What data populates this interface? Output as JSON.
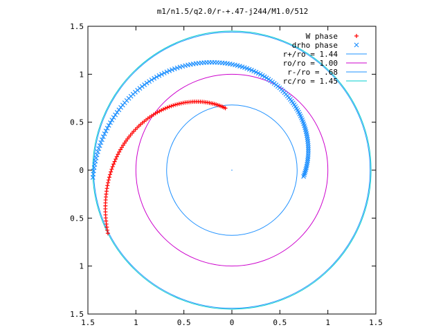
{
  "chart_data": {
    "type": "scatter",
    "title": "m1/n1.5/q2.0/r-+.47-j244/M1.0/512",
    "xlim": [
      -1.5,
      1.5
    ],
    "ylim": [
      -1.5,
      1.5
    ],
    "x_ticks": [
      -1.5,
      -1,
      -0.5,
      0,
      0.5,
      1,
      1.5
    ],
    "y_ticks": [
      -1.5,
      -1,
      -0.5,
      0,
      0.5,
      1,
      1.5
    ],
    "x_tick_labels": [
      "1.5",
      "1",
      "0.5",
      "0",
      "0.5",
      "1",
      "1.5"
    ],
    "y_tick_labels": [
      "1.5",
      "1",
      "0.5",
      "0",
      "0.5",
      "1",
      "1.5"
    ],
    "grid": false,
    "legend_position": "top-right",
    "colors": {
      "w_phase": "#ff0000",
      "drho_phase": "#1e90ff",
      "r_plus": "#1e90ff",
      "ro": "#cc00cc",
      "r_minus": "#1e90ff",
      "rc": "#00cccc"
    },
    "series": [
      {
        "name": "W phase",
        "kind": "points",
        "marker": "plus",
        "color": "#ff0000",
        "spiral": {
          "r_start": 0.65,
          "r_end": 1.45,
          "theta_start_deg": 96,
          "theta_end_deg": 207,
          "count": 90
        }
      },
      {
        "name": "drho phase",
        "kind": "points",
        "marker": "cross",
        "color": "#1e90ff",
        "spiral": {
          "r_start": 0.75,
          "r_end": 1.45,
          "theta_start_deg": -5,
          "theta_end_deg": 183,
          "count": 140
        }
      },
      {
        "name": "r+/ro = 1.44",
        "kind": "circle",
        "radius": 1.44,
        "color": "#1e90ff"
      },
      {
        "name": "ro/ro = 1.00",
        "kind": "circle",
        "radius": 1.0,
        "color": "#cc00cc"
      },
      {
        "name": "r-/ro = .68",
        "kind": "circle",
        "radius": 0.68,
        "color": "#1e90ff"
      },
      {
        "name": "rc/ro = 1.45",
        "kind": "circle",
        "radius": 1.45,
        "color": "#00cccc"
      }
    ]
  }
}
